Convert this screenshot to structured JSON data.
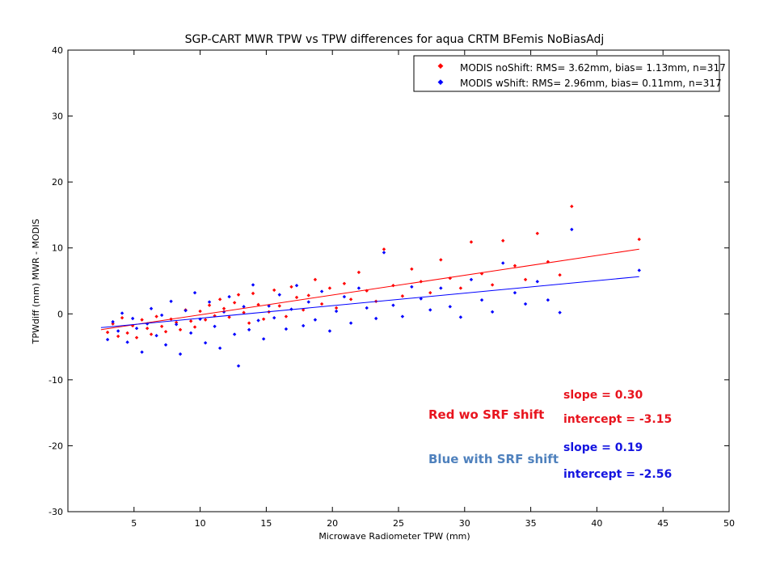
{
  "chart_data": {
    "type": "scatter",
    "title": "SGP-CART MWR TPW vs TPW differences for aqua CRTM BFemis NoBiasAdj",
    "xlabel": "Microwave Radiometer TPW (mm)",
    "ylabel": "TPWdiff (mm) MWR - MODIS",
    "xlim": [
      0,
      50
    ],
    "ylim": [
      -30,
      40
    ],
    "xticks": [
      5,
      10,
      15,
      20,
      25,
      30,
      35,
      40,
      45,
      50
    ],
    "yticks": [
      -30,
      -20,
      -10,
      0,
      10,
      20,
      30,
      40
    ],
    "grid": false,
    "legend_position": "top-right",
    "series": [
      {
        "name": "MODIS noShift:  RMS= 3.62mm, bias= 1.13mm, n=317",
        "color": "#ff0000",
        "marker": "diamond",
        "fit": {
          "slope": 0.3,
          "intercept": -3.15,
          "x_range": [
            2.5,
            43.2
          ]
        }
      },
      {
        "name": "MODIS wShift:  RMS= 2.96mm, bias= 0.11mm, n=317",
        "color": "#0000ff",
        "marker": "diamond",
        "fit": {
          "slope": 0.19,
          "intercept": -2.56,
          "x_range": [
            2.5,
            43.2
          ]
        }
      }
    ],
    "x": [
      3.0,
      3.4,
      3.8,
      4.1,
      4.5,
      4.9,
      5.2,
      5.6,
      6.0,
      6.3,
      6.7,
      7.1,
      7.4,
      7.8,
      8.2,
      8.5,
      8.9,
      9.3,
      9.6,
      10.0,
      10.4,
      10.7,
      11.1,
      11.5,
      11.8,
      12.2,
      12.6,
      12.9,
      13.3,
      13.7,
      14.0,
      14.4,
      14.8,
      15.2,
      15.6,
      16.0,
      16.5,
      16.9,
      17.3,
      17.8,
      18.2,
      18.7,
      19.2,
      19.8,
      20.3,
      20.9,
      21.4,
      22.0,
      22.6,
      23.3,
      23.9,
      24.6,
      25.3,
      26.0,
      26.7,
      27.4,
      28.2,
      28.9,
      29.7,
      30.5,
      31.3,
      32.1,
      32.9,
      33.8,
      34.6,
      35.5,
      36.3,
      37.2,
      38.1,
      43.2
    ],
    "y_red": [
      -2.8,
      -1.5,
      -3.4,
      -0.6,
      -2.9,
      -1.8,
      -3.6,
      -0.9,
      -2.2,
      -3.1,
      -0.4,
      -1.9,
      -2.7,
      -0.8,
      -1.3,
      -2.4,
      0.6,
      -1.1,
      -2.0,
      0.4,
      -0.9,
      1.3,
      -0.3,
      2.2,
      0.8,
      -0.5,
      1.7,
      2.9,
      0.2,
      -1.4,
      3.1,
      1.4,
      -0.8,
      0.3,
      3.6,
      1.2,
      -0.4,
      4.1,
      2.5,
      0.6,
      2.8,
      5.2,
      1.5,
      3.9,
      0.9,
      4.6,
      2.2,
      6.3,
      3.5,
      1.9,
      9.8,
      4.3,
      2.7,
      6.8,
      4.9,
      3.2,
      8.2,
      5.4,
      3.9,
      10.9,
      6.1,
      4.4,
      11.1,
      7.3,
      5.2,
      12.2,
      7.9,
      5.9,
      16.3,
      11.3
    ],
    "y_blue": [
      -3.9,
      -1.2,
      -2.6,
      0.1,
      -4.3,
      -0.7,
      -2.2,
      -5.8,
      -1.5,
      0.8,
      -3.3,
      -0.2,
      -4.7,
      1.9,
      -1.6,
      -6.1,
      0.5,
      -2.9,
      3.2,
      -0.8,
      -4.4,
      1.8,
      -1.9,
      -5.2,
      0.3,
      2.6,
      -3.1,
      -7.9,
      1.1,
      -2.4,
      4.4,
      -1.0,
      -3.8,
      1.2,
      -0.6,
      2.9,
      -2.3,
      0.7,
      4.3,
      -1.8,
      1.8,
      -0.9,
      3.4,
      -2.6,
      0.4,
      2.6,
      -1.4,
      3.9,
      0.9,
      -0.7,
      9.3,
      1.3,
      -0.4,
      4.1,
      2.3,
      0.6,
      3.9,
      1.1,
      -0.5,
      5.2,
      2.1,
      0.3,
      7.7,
      3.2,
      1.5,
      4.9,
      2.1,
      0.2,
      12.8,
      6.6
    ]
  },
  "annotations": {
    "red_slope": "slope = 0.30",
    "red_intercept": "intercept = -3.15",
    "blue_slope": "slope = 0.19",
    "blue_intercept": "intercept = -2.56",
    "red_label": "Red wo SRF shift",
    "blue_label": "Blue with SRF shift"
  }
}
